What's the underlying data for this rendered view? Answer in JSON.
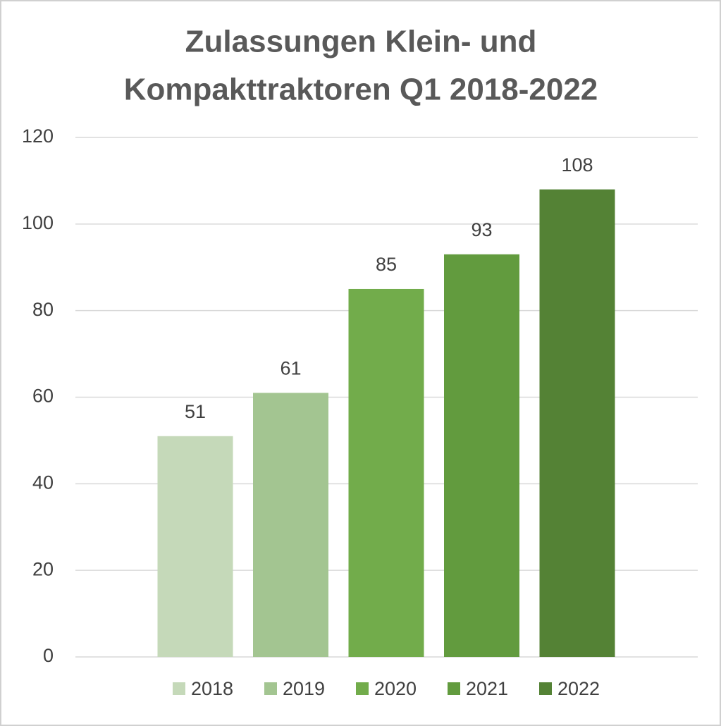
{
  "chart_data": {
    "type": "bar",
    "title": [
      "Zulassungen Klein- und",
      "Kompakttraktoren Q1 2018-2022"
    ],
    "series": [
      {
        "name": "2018",
        "color": "#c5d9b9",
        "values": [
          51
        ]
      },
      {
        "name": "2019",
        "color": "#a3c591",
        "values": [
          61
        ]
      },
      {
        "name": "2020",
        "color": "#72ac4b",
        "values": [
          85
        ]
      },
      {
        "name": "2021",
        "color": "#629b3e",
        "values": [
          93
        ]
      },
      {
        "name": "2022",
        "color": "#548235",
        "values": [
          108
        ]
      }
    ],
    "ylim": [
      0,
      120
    ],
    "yticks": [
      0,
      20,
      40,
      60,
      80,
      100,
      120
    ],
    "grid": true,
    "legend": "bottom"
  }
}
